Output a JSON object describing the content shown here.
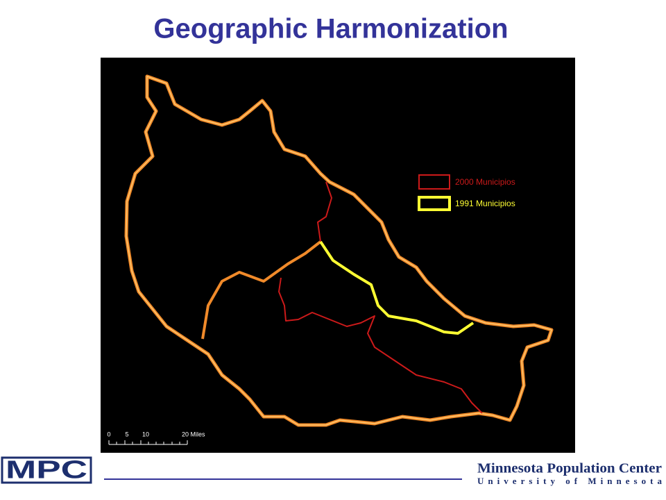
{
  "header": {
    "title": "Geographic Harmonization"
  },
  "legend": {
    "items": [
      "2000 Municipios",
      "1991 Municipios"
    ]
  },
  "scale_bar": {
    "labels": [
      "0",
      "5",
      "10",
      "20 Miles"
    ]
  },
  "footer": {
    "logo": "MPC",
    "organization": "Minnesota Population Center",
    "university": "University of Minnesota"
  }
}
